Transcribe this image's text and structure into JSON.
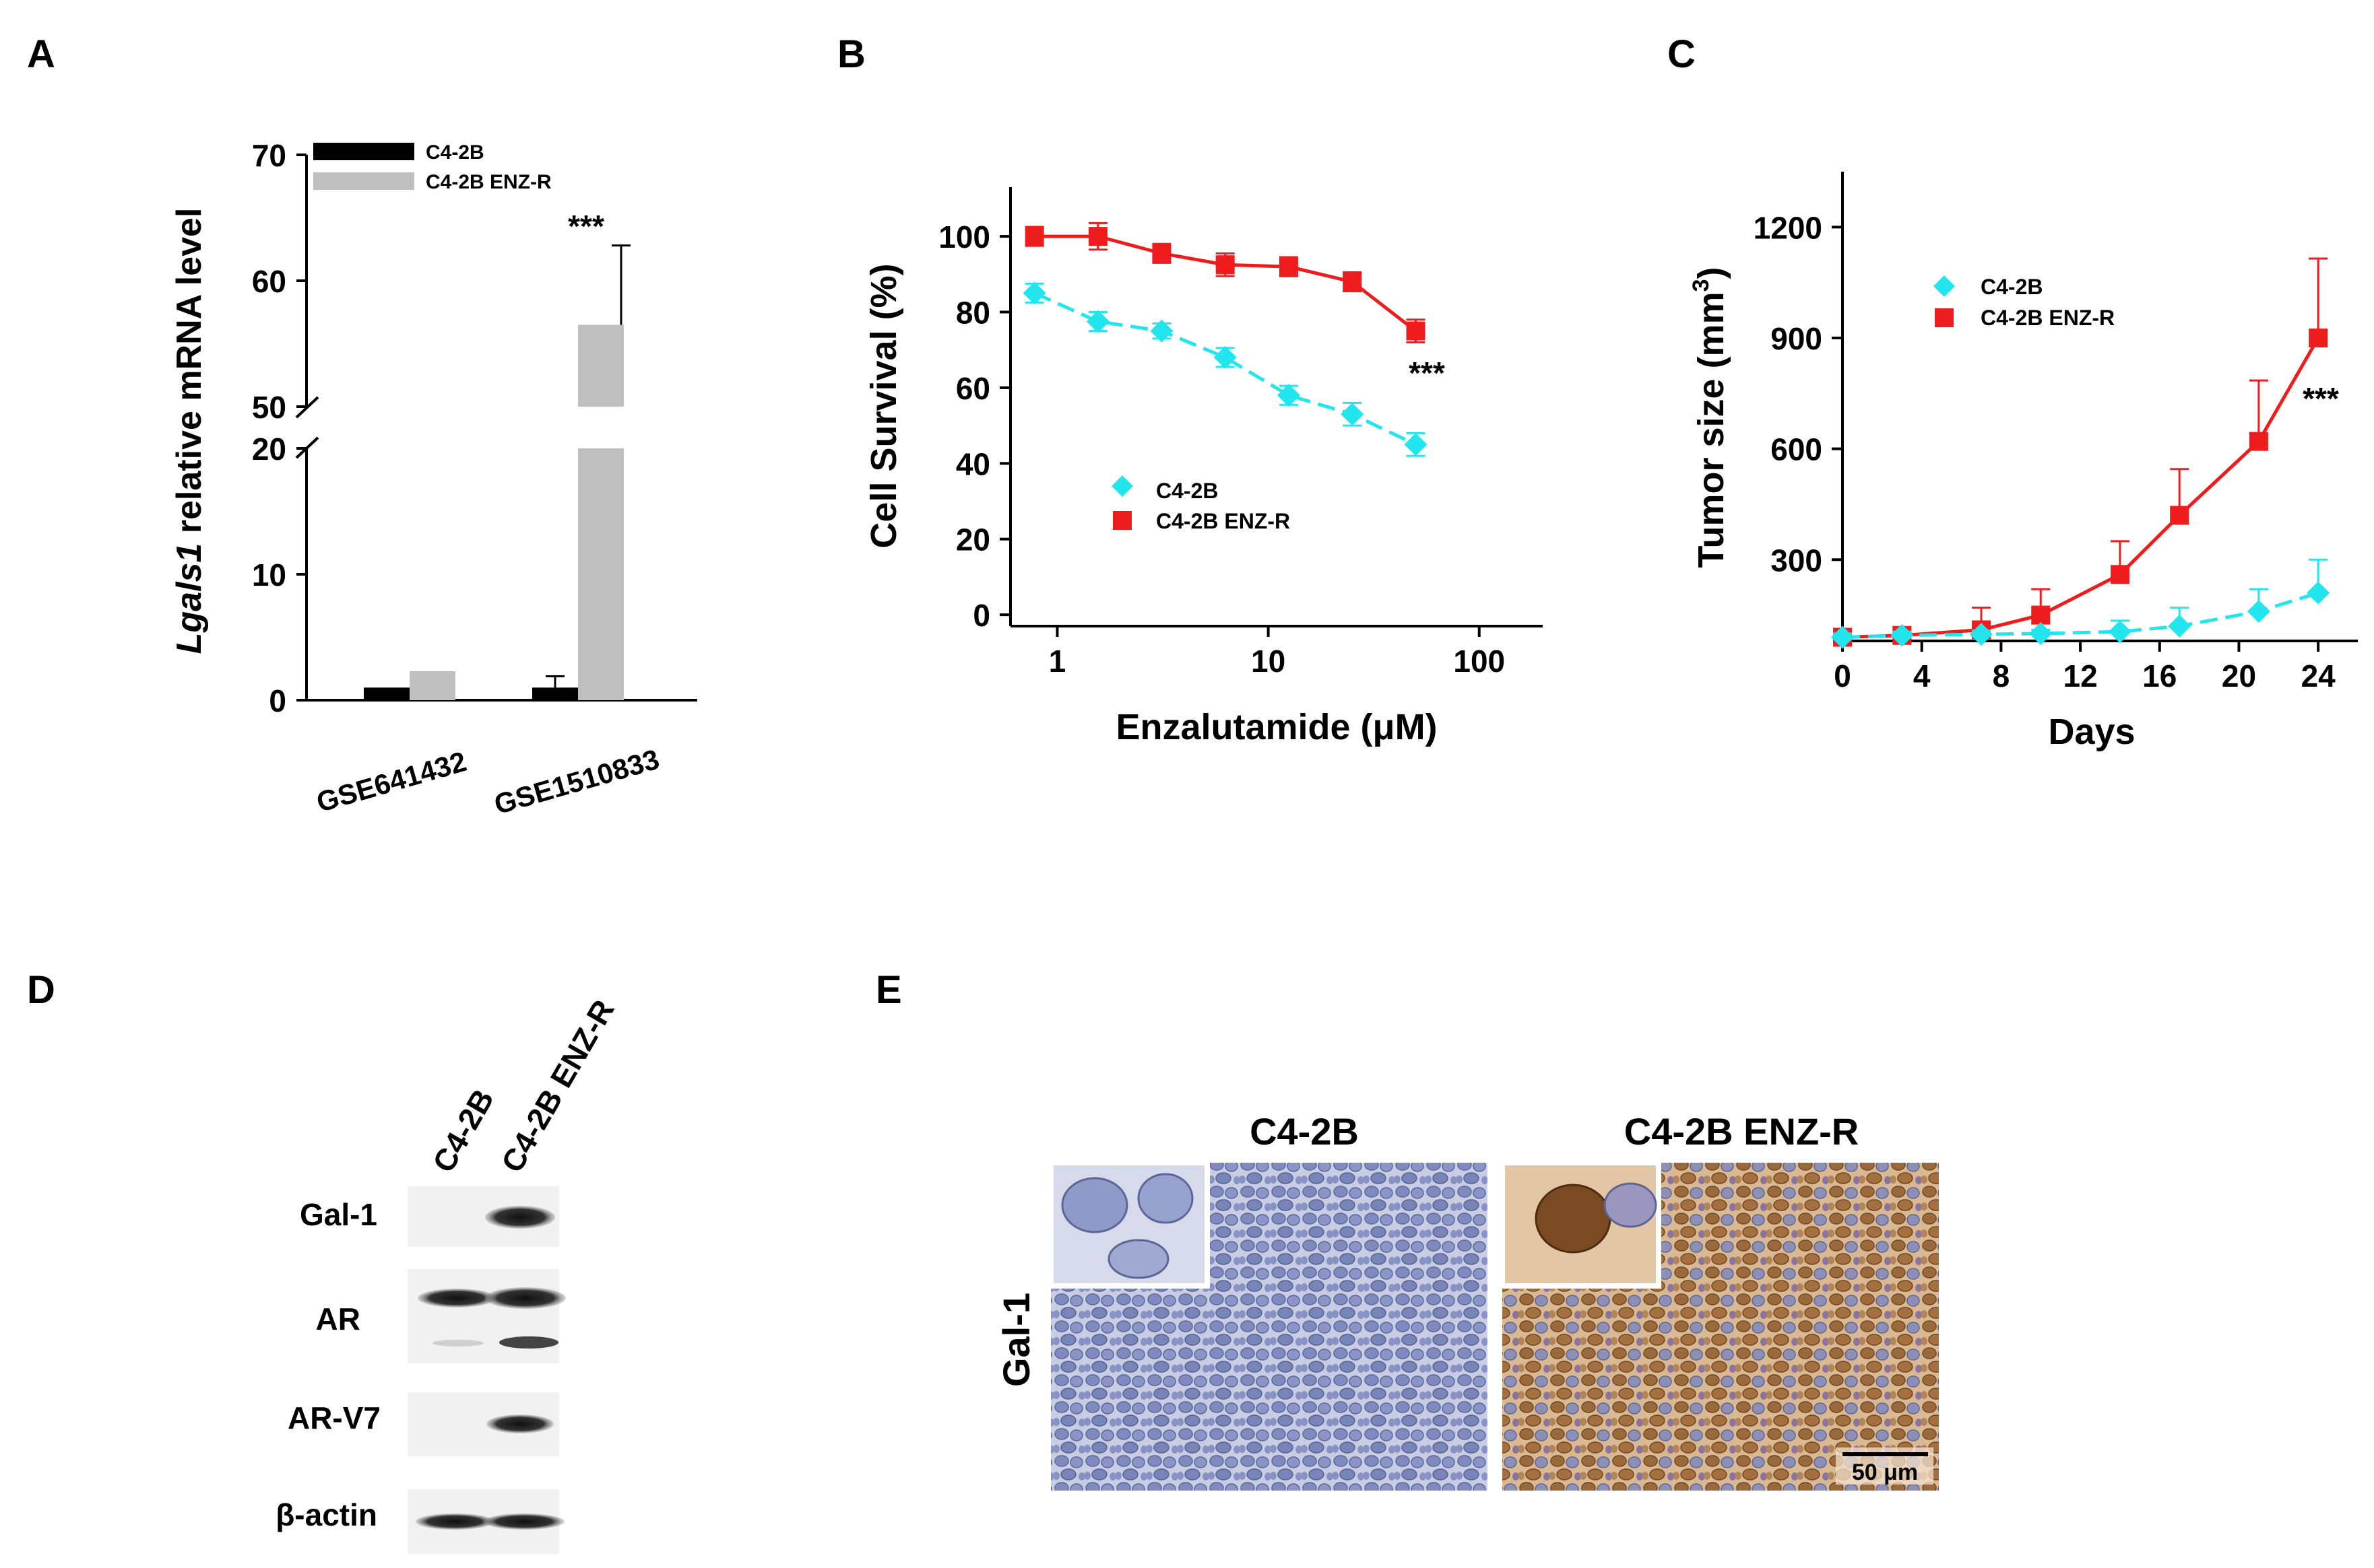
{
  "colors": {
    "black": "#000000",
    "grey": "#bfbfbf",
    "cyan": "#22e5ee",
    "red": "#ee1c1c",
    "blot_bg": "#f1f1f1",
    "ihc_blue": "#a9b1d6",
    "ihc_brown": "#c8a47c"
  },
  "panels": {
    "A": "A",
    "B": "B",
    "C": "C",
    "D": "D",
    "E": "E"
  },
  "chart_data": [
    {
      "panel": "A",
      "type": "bar",
      "ylabel_italic": "Lgals1",
      "ylabel_rest": " relative mRNA level",
      "broken_axis": true,
      "lower_range": [
        0,
        20
      ],
      "upper_range": [
        50,
        70
      ],
      "yticks_lower": [
        "0",
        "10",
        "20"
      ],
      "yticks_upper": [
        "50",
        "60",
        "70"
      ],
      "categories": [
        "GSE641432",
        "GSE1510833"
      ],
      "series": [
        {
          "name": "C4-2B",
          "color": "#000000",
          "values": [
            1.0,
            1.0
          ],
          "errors": [
            0,
            0.9
          ]
        },
        {
          "name": "C4-2B ENZ-R",
          "color": "#bfbfbf",
          "values": [
            2.3,
            56.5
          ],
          "errors": [
            0,
            6.3
          ]
        }
      ],
      "annotation": "***",
      "legend": "top-left"
    },
    {
      "panel": "B",
      "type": "line",
      "xscale": "log",
      "xlabel": "Enzalutamide (μM)",
      "ylabel": "Cell Survival (%)",
      "xlim": [
        0.6,
        200
      ],
      "ylim": [
        -3,
        113
      ],
      "xticks": [
        "1",
        "10",
        "100"
      ],
      "yticks": [
        "0",
        "20",
        "40",
        "60",
        "80",
        "100"
      ],
      "x": [
        0.78,
        1.56,
        3.125,
        6.25,
        12.5,
        25,
        50
      ],
      "series": [
        {
          "name": "C4-2B",
          "color": "#22e5ee",
          "marker": "diamond",
          "dashed": true,
          "values": [
            85,
            77.5,
            75,
            68,
            58,
            53,
            45
          ],
          "errors": [
            2.5,
            2.5,
            2,
            2.5,
            2.5,
            3,
            3
          ]
        },
        {
          "name": "C4-2B ENZ-R",
          "color": "#ee1c1c",
          "marker": "square",
          "dashed": false,
          "values": [
            100,
            100,
            95.5,
            92.5,
            92,
            88,
            75
          ],
          "errors": [
            2.5,
            3.5,
            2.5,
            3,
            2.5,
            2.5,
            3
          ]
        }
      ],
      "annotation": "***",
      "legend": "bottom-left"
    },
    {
      "panel": "C",
      "type": "line",
      "xlabel": "Days",
      "ylabel_main": "Tumor size (mm",
      "ylabel_sup": "3",
      "ylabel_end": ")",
      "xlim": [
        0,
        26
      ],
      "ylim": [
        80,
        1350
      ],
      "xticks": [
        "0",
        "4",
        "8",
        "12",
        "16",
        "20",
        "24"
      ],
      "yticks": [
        "300",
        "600",
        "900",
        "1200"
      ],
      "x": [
        0,
        3,
        7,
        10,
        14,
        17,
        21,
        24
      ],
      "series": [
        {
          "name": "C4-2B",
          "color": "#22e5ee",
          "marker": "diamond",
          "dashed": true,
          "values": [
            90,
            95,
            98,
            100,
            105,
            120,
            160,
            210
          ],
          "errors": [
            10,
            10,
            10,
            10,
            30,
            50,
            60,
            90
          ]
        },
        {
          "name": "C4-2B ENZ-R",
          "color": "#ee1c1c",
          "marker": "square",
          "dashed": false,
          "values": [
            90,
            95,
            110,
            150,
            260,
            420,
            620,
            900
          ],
          "errors": [
            15,
            15,
            60,
            70,
            90,
            125,
            165,
            215
          ]
        }
      ],
      "annotation": "***",
      "legend": "top-left"
    }
  ],
  "blot": {
    "lanes": [
      "C4-2B",
      "C4-2B ENZ-R"
    ],
    "rows": [
      {
        "label": "Gal-1"
      },
      {
        "label": "AR"
      },
      {
        "label": "AR-V7"
      },
      {
        "label": "β-actin"
      }
    ]
  },
  "ihc": {
    "titles": [
      "C4-2B",
      "C4-2B ENZ-R"
    ],
    "row_label": "Gal-1",
    "scale_bar": "50 μm"
  }
}
